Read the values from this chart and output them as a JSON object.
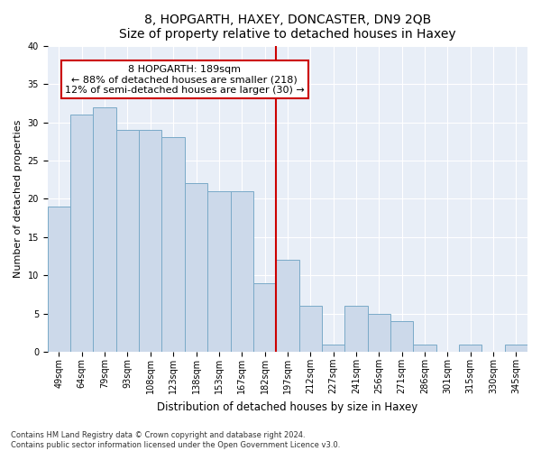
{
  "title": "8, HOPGARTH, HAXEY, DONCASTER, DN9 2QB",
  "subtitle": "Size of property relative to detached houses in Haxey",
  "xlabel": "Distribution of detached houses by size in Haxey",
  "ylabel": "Number of detached properties",
  "categories": [
    "49sqm",
    "64sqm",
    "79sqm",
    "93sqm",
    "108sqm",
    "123sqm",
    "138sqm",
    "153sqm",
    "167sqm",
    "182sqm",
    "197sqm",
    "212sqm",
    "227sqm",
    "241sqm",
    "256sqm",
    "271sqm",
    "286sqm",
    "301sqm",
    "315sqm",
    "330sqm",
    "345sqm"
  ],
  "values": [
    19,
    31,
    32,
    29,
    29,
    28,
    22,
    21,
    21,
    9,
    12,
    6,
    1,
    6,
    5,
    4,
    1,
    0,
    1,
    0,
    1
  ],
  "bar_color": "#ccd9ea",
  "bar_edge_color": "#7aaac8",
  "vline_x_index": 9.5,
  "vline_color": "#cc0000",
  "annotation_text": "8 HOPGARTH: 189sqm\n← 88% of detached houses are smaller (218)\n12% of semi-detached houses are larger (30) →",
  "annotation_box_color": "#ffffff",
  "annotation_box_edge": "#cc0000",
  "ylim": [
    0,
    40
  ],
  "yticks": [
    0,
    5,
    10,
    15,
    20,
    25,
    30,
    35,
    40
  ],
  "background_color": "#e8eef7",
  "footer_text": "Contains HM Land Registry data © Crown copyright and database right 2024.\nContains public sector information licensed under the Open Government Licence v3.0.",
  "title_fontsize": 10,
  "xlabel_fontsize": 8.5,
  "ylabel_fontsize": 8,
  "tick_fontsize": 7,
  "annotation_fontsize": 8,
  "footer_fontsize": 6
}
